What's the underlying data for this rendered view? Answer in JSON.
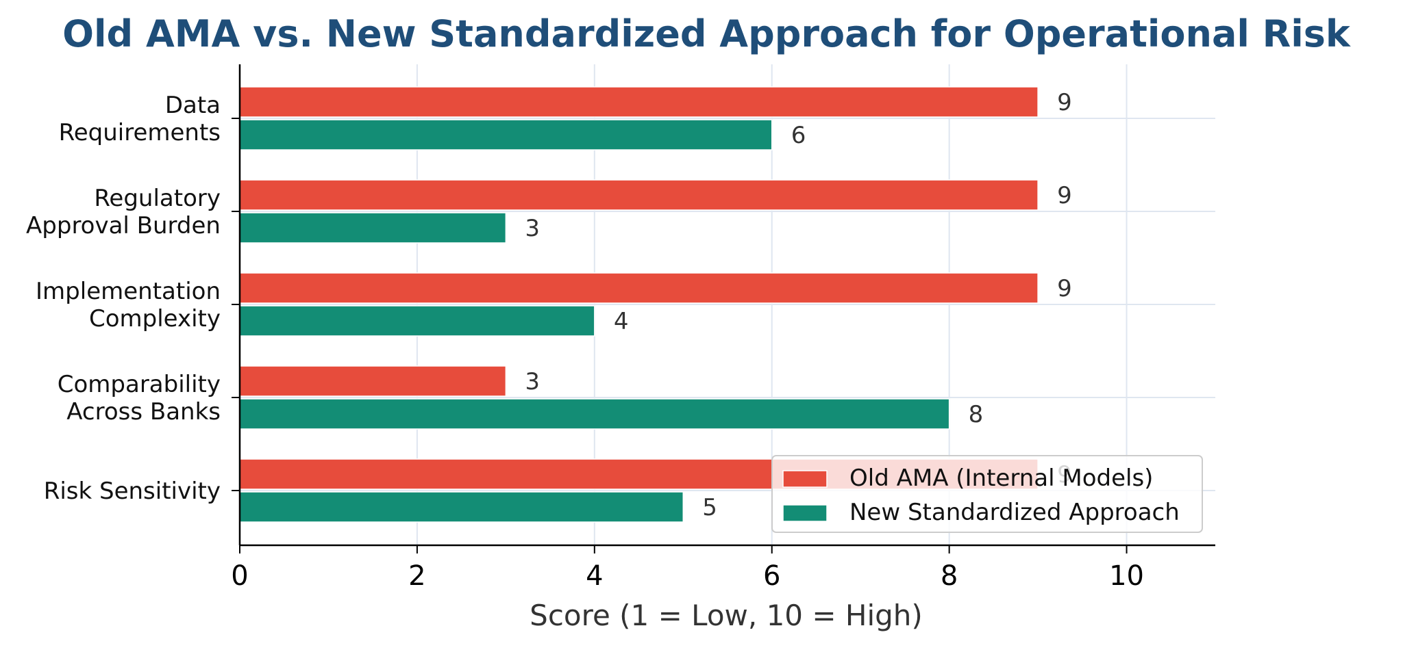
{
  "chart_data": {
    "type": "bar",
    "orientation": "horizontal",
    "title": "Old AMA vs. New Standardized Approach for Operational Risk",
    "xlabel": "Score (1 = Low, 10 = High)",
    "ylabel": "",
    "xlim": [
      0,
      11
    ],
    "xticks": [
      0,
      2,
      4,
      6,
      8,
      10
    ],
    "grid": true,
    "legend_position": "lower-right",
    "categories": [
      [
        "Data",
        "Requirements"
      ],
      [
        "Regulatory",
        "Approval Burden"
      ],
      [
        "Implementation",
        "Complexity"
      ],
      [
        "Comparability",
        "Across Banks"
      ],
      [
        "Risk Sensitivity"
      ]
    ],
    "series": [
      {
        "name": "Old AMA (Internal Models)",
        "color": "#e74c3c",
        "values": [
          9,
          9,
          9,
          3,
          9
        ]
      },
      {
        "name": "New Standardized Approach",
        "color": "#138d75",
        "values": [
          6,
          3,
          4,
          8,
          5
        ]
      }
    ]
  }
}
